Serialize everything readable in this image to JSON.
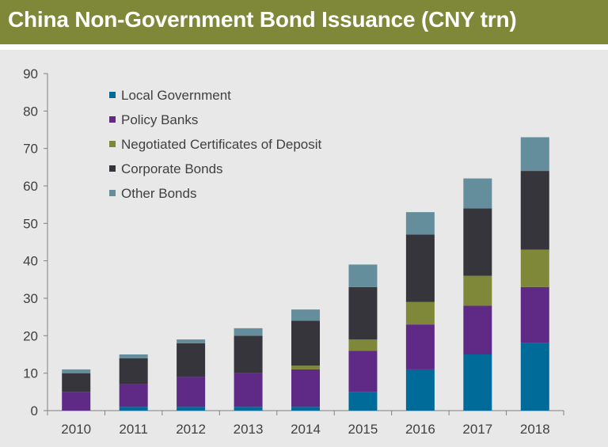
{
  "header": {
    "title": "China Non-Government Bond Issuance (CNY trn)"
  },
  "chart_data": {
    "type": "bar",
    "stacked": true,
    "title": "China Non-Government Bond Issuance (CNY trn)",
    "xlabel": "",
    "ylabel": "",
    "ylim": [
      0,
      90
    ],
    "yticks": [
      "0",
      "10",
      "20",
      "30",
      "40",
      "50",
      "60",
      "70",
      "80",
      "90"
    ],
    "grid": false,
    "legend_position": "top-left",
    "categories": [
      "2010",
      "2011",
      "2012",
      "2013",
      "2014",
      "2015",
      "2016",
      "2017",
      "2018"
    ],
    "series": [
      {
        "name": "Local Government",
        "color": "#006a99",
        "values": [
          0,
          1,
          1,
          1,
          1,
          5,
          11,
          15,
          18
        ]
      },
      {
        "name": "Policy Banks",
        "color": "#5e2a86",
        "values": [
          5,
          6,
          8,
          9,
          10,
          11,
          12,
          13,
          15
        ]
      },
      {
        "name": "Negotiated Certificates of Deposit",
        "color": "#7f8739",
        "values": [
          0,
          0,
          0,
          0,
          1,
          3,
          6,
          8,
          10
        ]
      },
      {
        "name": "Corporate Bonds",
        "color": "#37353c",
        "values": [
          5,
          7,
          9,
          10,
          12,
          14,
          18,
          18,
          21
        ]
      },
      {
        "name": "Other Bonds",
        "color": "#648e9b",
        "values": [
          1,
          1,
          1,
          2,
          3,
          6,
          6,
          8,
          9
        ]
      }
    ]
  }
}
